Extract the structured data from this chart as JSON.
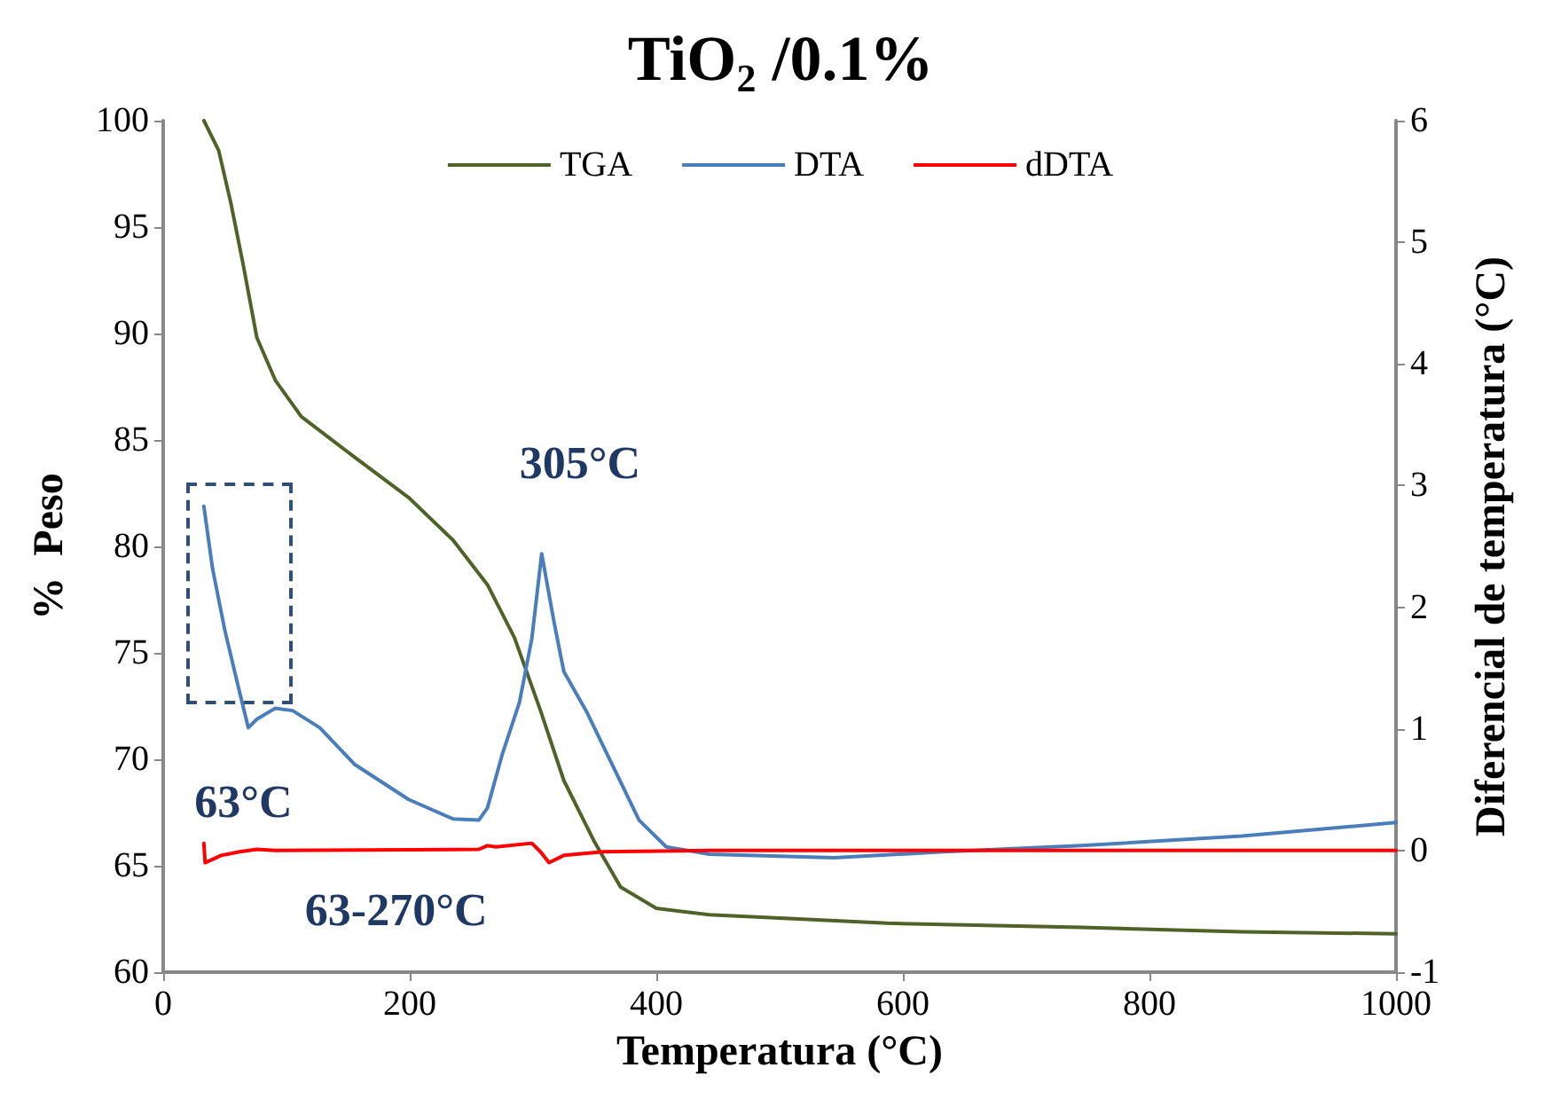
{
  "chart_data": {
    "type": "line",
    "title": "TiO$_{2}$ /0.1%",
    "xlabel": "Temperatura (°C)",
    "ylabel": "%  Peso",
    "y2label": "Diferencial de temperatura (°C)",
    "xlim": [
      0,
      1000
    ],
    "xticks": [
      0,
      200,
      400,
      600,
      800,
      1000
    ],
    "ylim": [
      60,
      100
    ],
    "yticks": [
      60,
      65,
      70,
      75,
      80,
      85,
      90,
      95,
      100
    ],
    "y2lim": [
      -1,
      6
    ],
    "y2ticks": [
      -1,
      0,
      1,
      2,
      3,
      4,
      5,
      6
    ],
    "grid": false,
    "legend": "top",
    "marker": "none",
    "line_style": "solid",
    "annotations": [
      "305°C",
      "63°C",
      "63-270°C"
    ],
    "series": [
      {
        "name": "TGA",
        "color": "#4f6228",
        "x": [
          33,
          45,
          55,
          65,
          76,
          91,
          112,
          155,
          199,
          235,
          263,
          285,
          306,
          325,
          350,
          371,
          400,
          443,
          587,
          745,
          875,
          1000
        ],
        "values": [
          100,
          98.6,
          96.1,
          93.2,
          89.8,
          87.8,
          86.1,
          84.2,
          82.3,
          80.3,
          78.2,
          75.7,
          72.3,
          69,
          66.1,
          64,
          63,
          62.7,
          62.3,
          62.1,
          61.9,
          61.8
        ]
      },
      {
        "name": "DTA",
        "color": "#4a7ebb",
        "axis": "y2",
        "x": [
          33,
          40,
          50,
          62,
          69,
          76,
          91,
          105,
          127,
          155,
          199,
          235,
          256,
          263,
          275,
          289,
          299,
          307,
          317,
          325,
          343,
          364,
          386,
          408,
          443,
          544,
          633,
          745,
          875,
          1000
        ],
        "values": [
          2.83,
          2.32,
          1.81,
          1.3,
          1.01,
          1.08,
          1.17,
          1.15,
          1.01,
          0.71,
          0.42,
          0.26,
          0.25,
          0.35,
          0.79,
          1.22,
          1.74,
          2.44,
          1.88,
          1.47,
          1.15,
          0.71,
          0.25,
          0.03,
          -0.03,
          -0.06,
          -0.01,
          0.04,
          0.12,
          0.23
        ]
      },
      {
        "name": "dDTA",
        "color": "#ff0000",
        "axis": "y2",
        "x": [
          33,
          34,
          47,
          62,
          76,
          91,
          256,
          263,
          270,
          299,
          306,
          313,
          325,
          357,
          443,
          1000
        ],
        "values": [
          0.06,
          -0.1,
          -0.04,
          -0.01,
          0.01,
          0,
          0.01,
          0.04,
          0.03,
          0.06,
          -0.01,
          -0.1,
          -0.04,
          -0.01,
          0,
          0
        ]
      }
    ]
  }
}
